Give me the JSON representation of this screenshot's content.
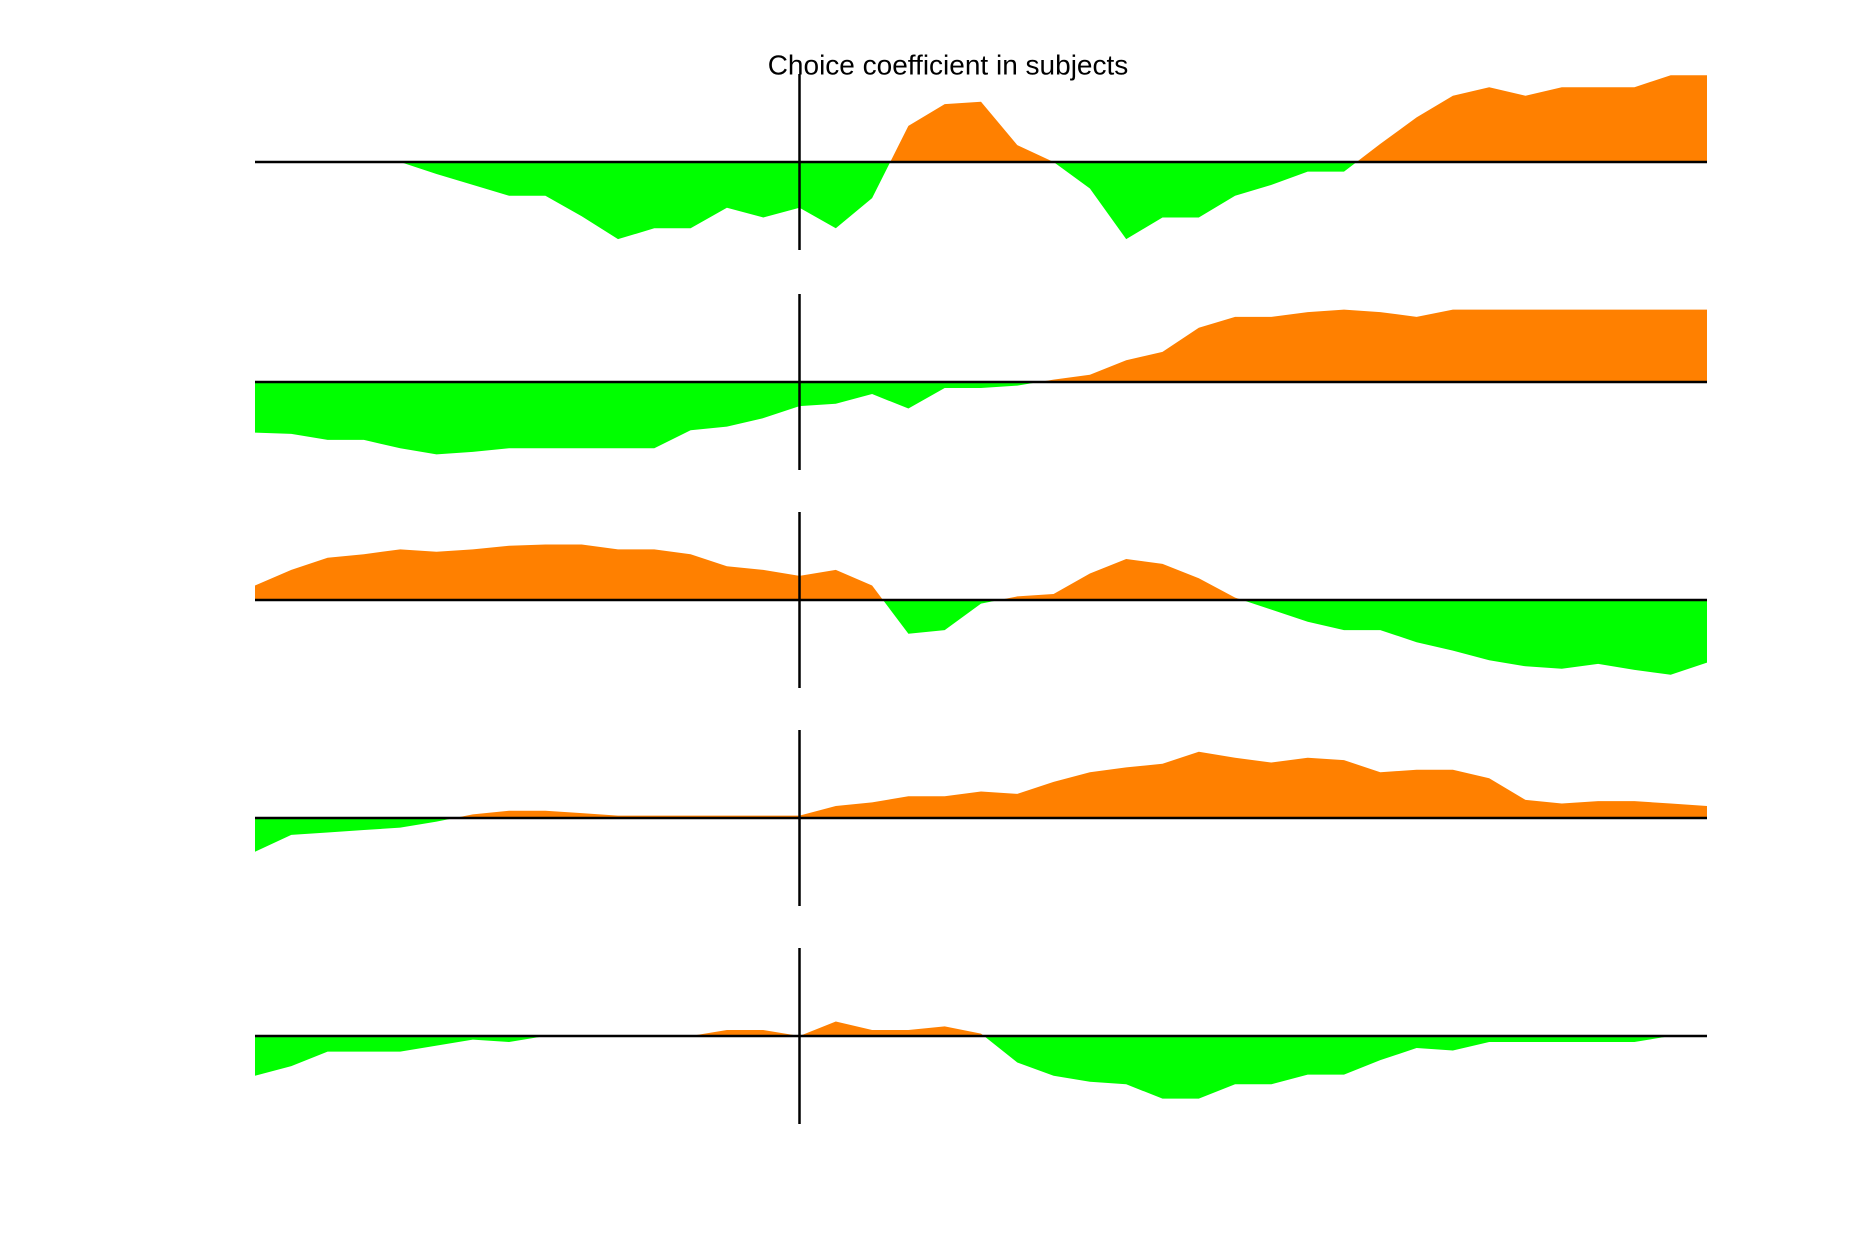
{
  "chart_data": {
    "type": "area",
    "title": "Choice coefficient in subjects",
    "x": [
      0,
      1,
      2,
      3,
      4,
      5,
      6,
      7,
      8,
      9,
      10,
      11,
      12,
      13,
      14,
      15,
      16,
      17,
      18,
      19,
      20,
      21,
      22,
      23,
      24,
      25,
      26,
      27,
      28,
      29,
      30,
      31,
      32,
      33,
      34,
      35,
      36,
      37,
      38,
      39,
      40
    ],
    "xlim": [
      0,
      40
    ],
    "vline_x": 15,
    "baseline": 0,
    "ylim": [
      -73,
      73
    ],
    "pos_color": "#ff8000",
    "neg_color": "#00ff00",
    "series": [
      {
        "values": [
          0,
          0,
          0,
          0,
          0,
          -10,
          -19,
          -28,
          -28,
          -45,
          -64,
          -55,
          -55,
          -38,
          -46,
          -38,
          -55,
          -30,
          30,
          48,
          50,
          14,
          0,
          -22,
          -64,
          -46,
          -46,
          -28,
          -19,
          -8,
          -8,
          15,
          37,
          55,
          62,
          55,
          62,
          62,
          62,
          72,
          72
        ]
      },
      {
        "values": [
          -42,
          -43,
          -48,
          -48,
          -55,
          -60,
          -58,
          -55,
          -55,
          -55,
          -55,
          -55,
          -40,
          -37,
          -30,
          -20,
          -18,
          -10,
          -22,
          -5,
          -5,
          -3,
          2,
          6,
          18,
          25,
          45,
          54,
          54,
          58,
          60,
          58,
          54,
          60,
          60,
          60,
          60,
          60,
          60,
          60,
          60
        ]
      },
      {
        "values": [
          12,
          25,
          35,
          38,
          42,
          40,
          42,
          45,
          46,
          46,
          42,
          42,
          38,
          28,
          25,
          20,
          25,
          12,
          -28,
          -25,
          -3,
          3,
          5,
          22,
          34,
          30,
          18,
          2,
          -8,
          -18,
          -25,
          -25,
          -35,
          -42,
          -50,
          -55,
          -57,
          -53,
          -58,
          -62,
          -52
        ]
      },
      {
        "values": [
          -28,
          -14,
          -12,
          -10,
          -8,
          -3,
          3,
          6,
          6,
          4,
          2,
          2,
          2,
          2,
          2,
          2,
          10,
          13,
          18,
          18,
          22,
          20,
          30,
          38,
          42,
          45,
          55,
          50,
          46,
          50,
          48,
          38,
          40,
          40,
          33,
          15,
          12,
          14,
          14,
          12,
          10
        ]
      },
      {
        "values": [
          -33,
          -25,
          -13,
          -13,
          -13,
          -8,
          -3,
          -5,
          0,
          0,
          0,
          0,
          0,
          5,
          5,
          0,
          12,
          5,
          5,
          8,
          2,
          -22,
          -33,
          -38,
          -40,
          -52,
          -52,
          -40,
          -40,
          -32,
          -32,
          -20,
          -10,
          -12,
          -5,
          -5,
          -5,
          -5,
          -5,
          0,
          0
        ]
      }
    ]
  }
}
